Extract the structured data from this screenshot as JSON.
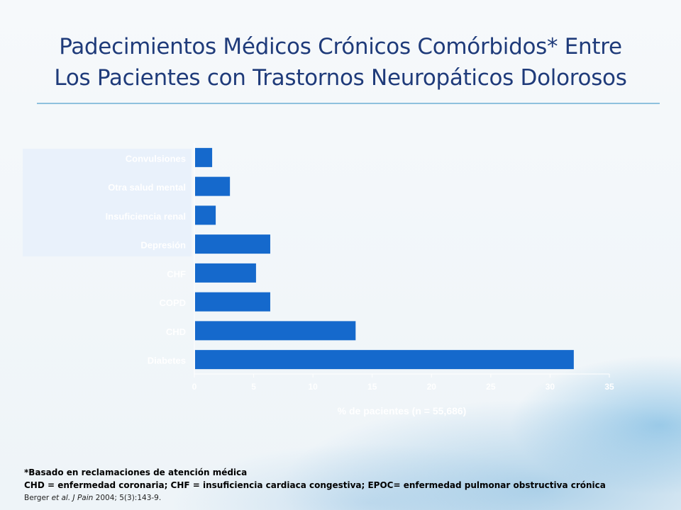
{
  "slide": {
    "title_line1": "Padecimientos Médicos Crónicos Comórbidos* Entre",
    "title_line2": "Los Pacientes con Trastornos Neuropáticos Dolorosos",
    "colors": {
      "title": "#1f3b7a",
      "bar": "#1569cc",
      "rule": "#8ec1de"
    }
  },
  "chart_data": {
    "type": "bar",
    "orientation": "horizontal",
    "categories": [
      "Convulsiones",
      "Otra salud mental",
      "Insuficiencia renal",
      "Depresión",
      "CHF",
      "COPD",
      "CHD",
      "Diabetes"
    ],
    "values": [
      1.5,
      3,
      1.8,
      6.4,
      5.2,
      6.4,
      13.6,
      32
    ],
    "xlabel": "%  de pacientes (n = 55,686)",
    "ylabel": "",
    "xlim": [
      0,
      35
    ],
    "xticks": [
      "0",
      "5",
      "10",
      "15",
      "20",
      "25",
      "30",
      "35"
    ],
    "grid": false
  },
  "footnotes": {
    "line1": "*Basado en reclamaciones de atención médica",
    "line2": "CHD = enfermedad coronaria; CHF = insuficiencia cardiaca congestiva; EPOC= enfermedad pulmonar obstructiva crónica",
    "citation_author": "Berger ",
    "citation_etal": "et al.",
    "citation_mid": " ",
    "citation_journal": "J Pain",
    "citation_rest": " 2004; 5(3):143-9."
  }
}
